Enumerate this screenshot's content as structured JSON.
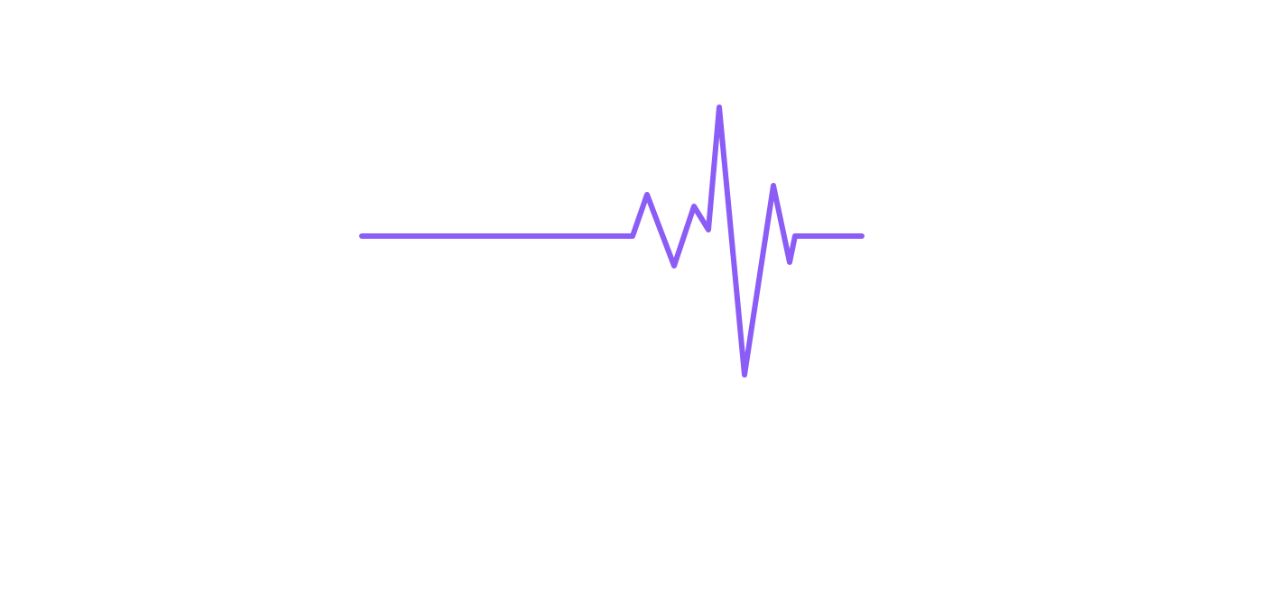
{
  "graphic": {
    "name": "heartbeat-pulse",
    "line_color": "#8b5cf6",
    "background_color": "#ffffff"
  }
}
